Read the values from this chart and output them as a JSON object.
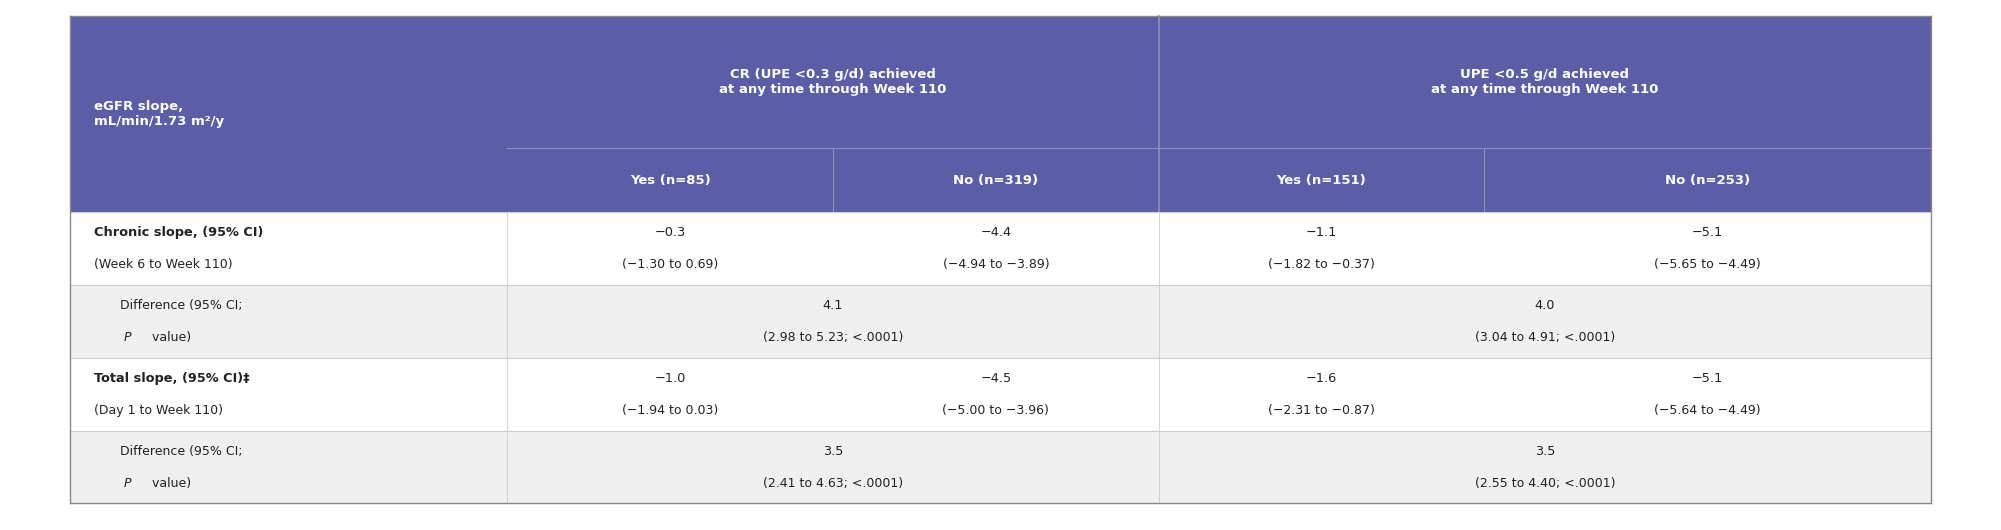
{
  "header_bg_color": "#5b5ea6",
  "header_text_color": "#ffffff",
  "outer_bg": "#ffffff",
  "text_color_dark": "#222222",
  "col1_header": "eGFR slope,\nmL/min/1.73 m²/y",
  "col2_header": "CR (UPE <0.3 g/d) achieved\nat any time through Week 110",
  "col3_header": "UPE <0.5 g/d achieved\nat any time through Week 110",
  "col2a_subheader": "Yes (n=85)",
  "col2b_subheader": "No (n=319)",
  "col3a_subheader": "Yes (n=151)",
  "col3b_subheader": "No (n=253)",
  "rows": [
    {
      "label_bold": "Chronic slope, (95% CI)",
      "label_normal": "(Week 6 to Week 110)",
      "col2a_line1": "−0.3",
      "col2a_line2": "(−1.30 to 0.69)",
      "col2b_line1": "−4.4",
      "col2b_line2": "(−4.94 to −3.89)",
      "col3a_line1": "−1.1",
      "col3a_line2": "(−1.82 to −0.37)",
      "col3b_line1": "−5.1",
      "col3b_line2": "(−5.65 to −4.49)",
      "type": "data",
      "bg": "#ffffff"
    },
    {
      "label_line1": "Difference (95% CI;",
      "label_line2_p": "P",
      "label_line2_rest": " value)",
      "col2_span_line1": "4.1",
      "col2_span_line2": "(2.98 to 5.23; <.0001)",
      "col3_span_line1": "4.0",
      "col3_span_line2": "(3.04 to 4.91; <.0001)",
      "type": "difference",
      "bg": "#f0f0f0"
    },
    {
      "label_bold": "Total slope, (95% CI)‡",
      "label_normal": "(Day 1 to Week 110)",
      "col2a_line1": "−1.0",
      "col2a_line2": "(−1.94 to 0.03)",
      "col2b_line1": "−4.5",
      "col2b_line2": "(−5.00 to −3.96)",
      "col3a_line1": "−1.6",
      "col3a_line2": "(−2.31 to −0.87)",
      "col3b_line1": "−5.1",
      "col3b_line2": "(−5.64 to −4.49)",
      "type": "data",
      "bg": "#ffffff"
    },
    {
      "label_line1": "Difference (95% CI;",
      "label_line2_p": "P",
      "label_line2_rest": " value)",
      "col2_span_line1": "3.5",
      "col2_span_line2": "(2.41 to 4.63; <.0001)",
      "col3_span_line1": "3.5",
      "col3_span_line2": "(2.55 to 4.40; <.0001)",
      "type": "difference",
      "bg": "#f0f0f0"
    }
  ],
  "figsize": [
    20.01,
    5.3
  ],
  "dpi": 100
}
